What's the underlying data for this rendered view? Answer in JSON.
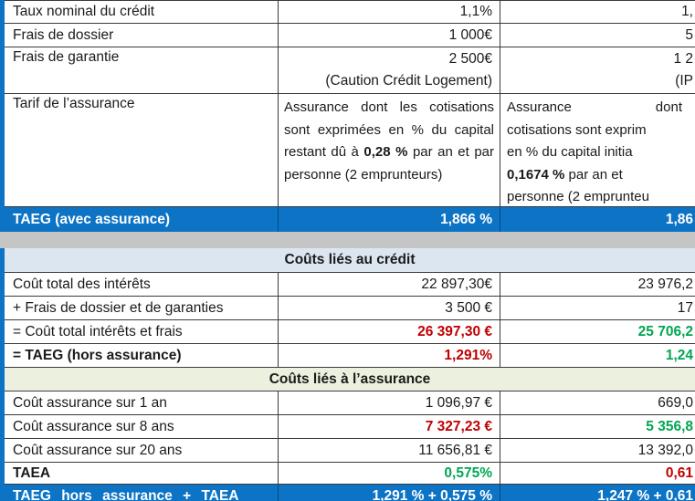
{
  "colors": {
    "accent_blue": "#0d73c5",
    "section_header_blue": "#dce6f1",
    "section_header_green": "#ebf1de",
    "negative_red": "#c00000",
    "positive_green": "#00a651",
    "gap_gray": "#c5c5c5",
    "border_dark": "#3b3b3b"
  },
  "table1": {
    "rows": {
      "taux": {
        "label": "Taux nominal du crédit",
        "col2": "1,1%",
        "col3": "1,"
      },
      "dossier": {
        "label": "Frais de dossier",
        "col2": "1 000€",
        "col3": "5"
      },
      "garantie": {
        "label": "Frais de garantie",
        "col2_line1": "2 500€",
        "col2_line2": "(Caution Crédit Logement)",
        "col3_line1": "1 2",
        "col3_line2": "(IP"
      },
      "assurance": {
        "label": "Tarif de l’assurance",
        "col2_pre": "Assurance dont les cotisations sont exprimées en % du capital restant dû à ",
        "col2_bold": "0,28 %",
        "col2_post": " par an et par personne (2 emprunteurs)",
        "col3_line1_a": "Assurance",
        "col3_line1_b": "dont",
        "col3_line2": "cotisations sont exprim",
        "col3_line3": "en % du capital initia",
        "col3_line4_bold": "0,1674 %",
        "col3_line4_rest": " par an et",
        "col3_line5": "personne (2 emprunteu"
      }
    },
    "taeg_row": {
      "label": "TAEG (avec assurance)",
      "col2": "1,866 %",
      "col3": "1,86"
    }
  },
  "table2": {
    "credit_header": "Coûts liés au crédit",
    "credit_rows": {
      "interets": {
        "label": "Coût total des intérêts",
        "col2": "22 897,30€",
        "col3": "23 976,2"
      },
      "frais": {
        "label": "+ Frais de dossier et de garanties",
        "col2": "3 500 €",
        "col3": "17"
      },
      "total": {
        "label": "= Coût total intérêts et frais",
        "col2": "26 397,30 €",
        "col3": "25 706,2"
      },
      "taeg_hors": {
        "label": "= TAEG (hors assurance)",
        "col2": "1,291%",
        "col3": "1,24"
      }
    },
    "insurance_header": "Coûts liés à l’assurance",
    "insurance_rows": {
      "an1": {
        "label": "Coût assurance sur 1 an",
        "col2": "1 096,97 €",
        "col3": "669,0"
      },
      "ans8": {
        "label": "Coût assurance sur 8 ans",
        "col2": "7 327,23 €",
        "col3": "5 356,8"
      },
      "ans20": {
        "label": "Coût assurance sur 20 ans",
        "col2": "11 656,81 €",
        "col3": "13 392,0"
      },
      "taea": {
        "label": "TAEA",
        "col2": "0,575%",
        "col3": "0,61"
      }
    },
    "footer": {
      "label": "TAEG hors assurance + TAEA",
      "col2": "1,291 % + 0,575 %",
      "col3": "1,247 % + 0,61"
    }
  }
}
